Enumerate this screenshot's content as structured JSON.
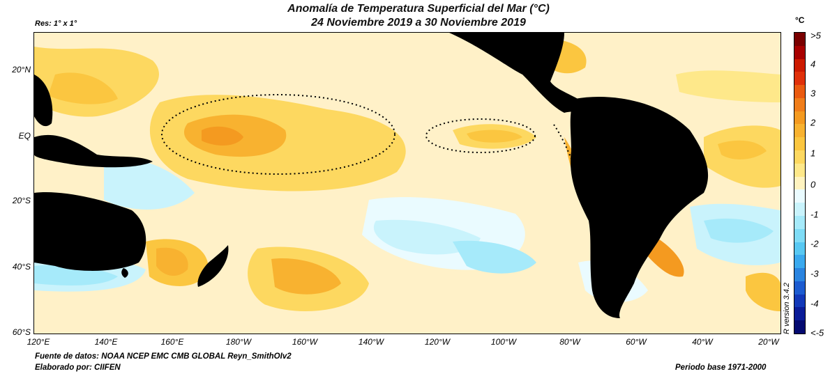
{
  "title": "Anomalía de Temperatura Superficial del Mar (°C)",
  "subtitle": "24 Noviembre 2019 a 30 Noviembre 2019",
  "resolution": "Res: 1° x 1°",
  "lat_labels": [
    "20°N",
    "EQ",
    "20°S",
    "40°S",
    "60°S"
  ],
  "lon_labels": [
    "120°E",
    "140°E",
    "160°E",
    "180°W",
    "160°W",
    "140°W",
    "120°W",
    "100°W",
    "80°W",
    "60°W",
    "40°W",
    "20°W"
  ],
  "colorbar": {
    "unit": "°C",
    "ticks": [
      ">5",
      "4",
      "3",
      "2",
      "1",
      "0",
      "-1",
      "-2",
      "-3",
      "-4",
      "<-5"
    ],
    "colors": [
      "#7a0000",
      "#a80000",
      "#cc1a00",
      "#e0300a",
      "#ea5a10",
      "#f07d1a",
      "#f49a20",
      "#f8b230",
      "#fbc640",
      "#fdd860",
      "#fee88a",
      "#fff3c0",
      "#eafbff",
      "#c9f3fc",
      "#a6eafa",
      "#7fdcf6",
      "#58c8f2",
      "#3aa9ee",
      "#2a84e0",
      "#1c5bd0",
      "#1238b8",
      "#0a1c98",
      "#040a70"
    ]
  },
  "footer": {
    "source": "Fuente de datos: NOAA NCEP EMC CMB GLOBAL Reyn_SmithOIv2",
    "author": "Elaborado por: CIIFEN",
    "period": "Periodo base 1971-2000"
  },
  "r_version": "R version 3.4.2"
}
